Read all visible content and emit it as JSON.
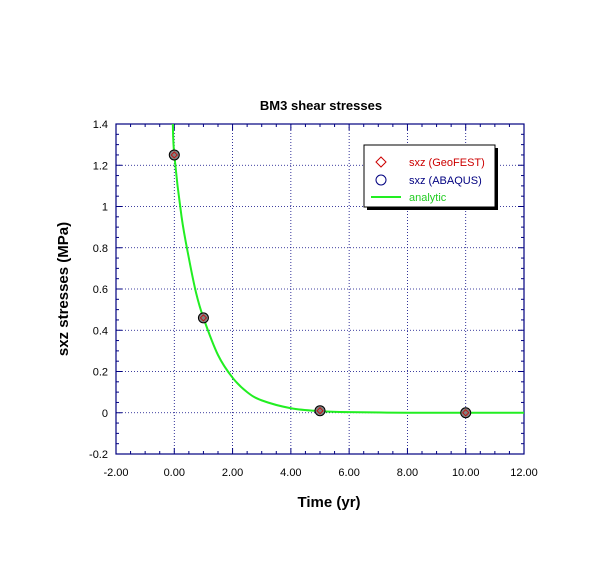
{
  "chart_data": {
    "type": "scatter",
    "title": "BM3 shear stresses",
    "xlabel": "Time (yr)",
    "ylabel": "sxz stresses (MPa)",
    "xlim": [
      -2,
      12
    ],
    "ylim": [
      -0.2,
      1.4
    ],
    "x_ticks": [
      "-2.00",
      "0.00",
      "2.00",
      "4.00",
      "6.00",
      "8.00",
      "10.00",
      "12.00"
    ],
    "y_ticks": [
      "-0.2",
      "0",
      "0.2",
      "0.4",
      "0.6",
      "0.8",
      "1",
      "1.2",
      "1.4"
    ],
    "grid": true,
    "legend_position": "top-right",
    "series": [
      {
        "name": "sxz (GeoFEST)",
        "marker": "diamond",
        "color": "#cc0000",
        "x": [
          0,
          1,
          5,
          10
        ],
        "y": [
          1.25,
          0.46,
          0.01,
          0.0
        ]
      },
      {
        "name": "sxz (ABAQUS)",
        "marker": "circle",
        "color": "#000080",
        "x": [
          0,
          1,
          5,
          10
        ],
        "y": [
          1.25,
          0.46,
          0.01,
          0.0
        ]
      },
      {
        "name": "analytic",
        "marker": "line",
        "color": "#22ee22",
        "x": [
          0.0,
          0.25,
          0.5,
          0.75,
          1.0,
          1.5,
          2.0,
          2.5,
          3.0,
          4.0,
          5.0,
          6.0,
          8.0,
          10.0,
          12.0
        ],
        "y": [
          1.25,
          0.95,
          0.75,
          0.58,
          0.46,
          0.28,
          0.17,
          0.1,
          0.06,
          0.022,
          0.008,
          0.003,
          0.0,
          0.0,
          0.0
        ]
      }
    ],
    "analytic_extension": {
      "x": [
        -0.05,
        0.0
      ],
      "y": [
        1.4,
        1.25
      ]
    }
  }
}
